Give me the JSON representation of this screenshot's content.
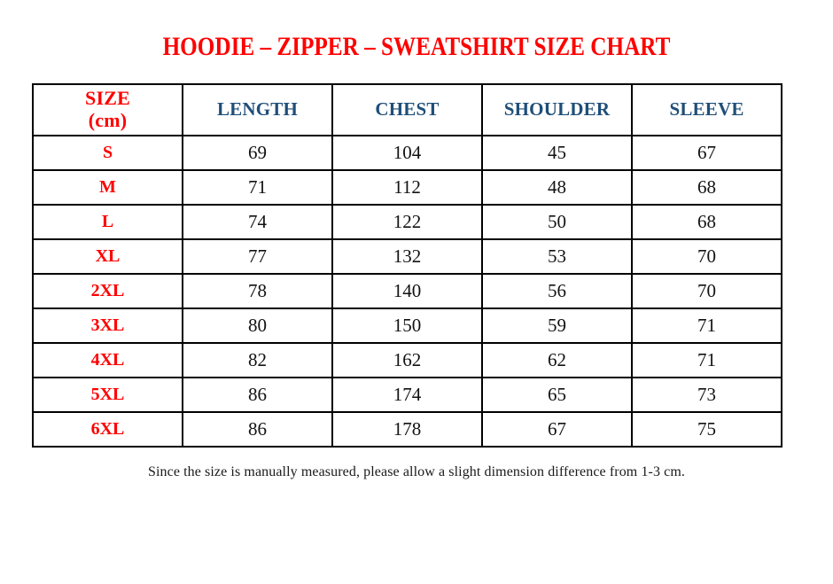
{
  "page": {
    "top_mark": ".",
    "title": "HOODIE – ZIPPER – SWEATSHIRT SIZE CHART",
    "footer_note": "Since the size is manually measured, please allow a slight dimension difference from 1-3 cm."
  },
  "colors": {
    "title_red": "#FF0000",
    "header_blue": "#1F4E79",
    "size_label_red": "#FF0000",
    "value_black": "#121212",
    "border_black": "#000000",
    "background": "#FFFFFF"
  },
  "table": {
    "headers": {
      "size_line1": "SIZE",
      "size_line2": "(cm)",
      "cols": [
        "LENGTH",
        "CHEST",
        "SHOULDER",
        "SLEEVE"
      ]
    },
    "rows": [
      {
        "size": "S",
        "values": [
          "69",
          "104",
          "45",
          "67"
        ]
      },
      {
        "size": "M",
        "values": [
          "71",
          "112",
          "48",
          "68"
        ]
      },
      {
        "size": "L",
        "values": [
          "74",
          "122",
          "50",
          "68"
        ]
      },
      {
        "size": "XL",
        "values": [
          "77",
          "132",
          "53",
          "70"
        ]
      },
      {
        "size": "2XL",
        "values": [
          "78",
          "140",
          "56",
          "70"
        ]
      },
      {
        "size": "3XL",
        "values": [
          "80",
          "150",
          "59",
          "71"
        ]
      },
      {
        "size": "4XL",
        "values": [
          "82",
          "162",
          "62",
          "71"
        ]
      },
      {
        "size": "5XL",
        "values": [
          "86",
          "174",
          "65",
          "73"
        ]
      },
      {
        "size": "6XL",
        "values": [
          "86",
          "178",
          "67",
          "75"
        ]
      }
    ]
  },
  "chart_data": {
    "type": "table",
    "title": "HOODIE – ZIPPER – SWEATSHIRT SIZE CHART",
    "columns": [
      "SIZE (cm)",
      "LENGTH",
      "CHEST",
      "SHOULDER",
      "SLEEVE"
    ],
    "rows": [
      [
        "S",
        69,
        104,
        45,
        67
      ],
      [
        "M",
        71,
        112,
        48,
        68
      ],
      [
        "L",
        74,
        122,
        50,
        68
      ],
      [
        "XL",
        77,
        132,
        53,
        70
      ],
      [
        "2XL",
        78,
        140,
        56,
        70
      ],
      [
        "3XL",
        80,
        150,
        59,
        71
      ],
      [
        "4XL",
        82,
        162,
        62,
        71
      ],
      [
        "5XL",
        86,
        174,
        65,
        73
      ],
      [
        "6XL",
        86,
        178,
        67,
        75
      ]
    ]
  }
}
